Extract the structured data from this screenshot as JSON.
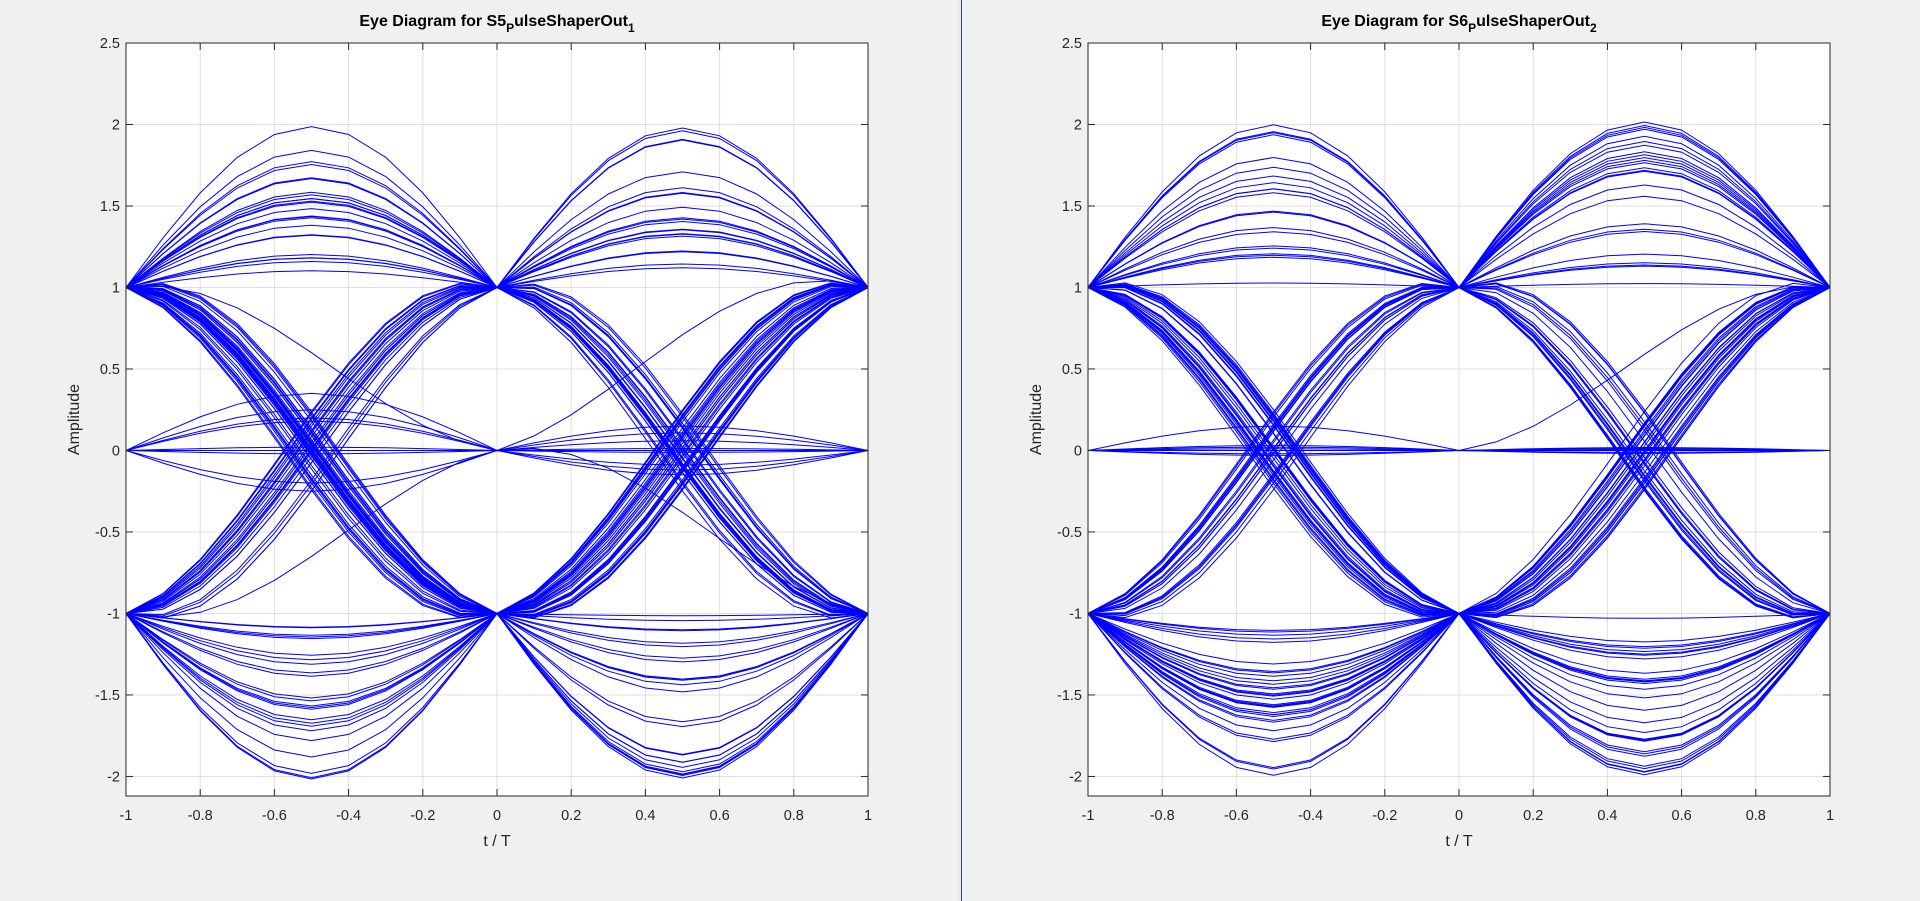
{
  "chart_data": [
    {
      "type": "line",
      "title": {
        "base": "Eye Diagram for S5",
        "sub": "P",
        "mid": "ulseShaperOut",
        "index": "1"
      },
      "xlabel": "t / T",
      "ylabel": "Amplitude",
      "xlim": [
        -1,
        1
      ],
      "ylim": [
        -2.12,
        2.5
      ],
      "xticks": [
        -1,
        -0.8,
        -0.6,
        -0.4,
        -0.2,
        0,
        0.2,
        0.4,
        0.6,
        0.8,
        1
      ],
      "xtick_labels": [
        "-1",
        "-0.8",
        "-0.6",
        "-0.4",
        "-0.2",
        "0",
        "0.2",
        "0.4",
        "0.6",
        "0.8",
        "1"
      ],
      "yticks": [
        -2,
        -1.5,
        -1,
        -0.5,
        0,
        0.5,
        1,
        1.5,
        2,
        2.5
      ],
      "ytick_labels": [
        "-2",
        "-1.5",
        "-1",
        "-0.5",
        "0",
        "0.5",
        "1",
        "1.5",
        "2",
        "2.5"
      ],
      "grid": true,
      "line_color": "#0000ff",
      "seed": 5,
      "samples_per_symbol": 10,
      "traces": 110,
      "bumps": [
        0.45,
        0.28,
        0.15,
        -0.15,
        0.32,
        0.2,
        0.1,
        -0.1
      ],
      "zero_traces": [
        {
          "start": 0,
          "end": 1,
          "bump": 0.35
        },
        {
          "start": 0,
          "end": -1,
          "bump": 0.2
        },
        {
          "start": 0,
          "end": 0,
          "bump": 0.25
        },
        {
          "start": 0,
          "end": 0,
          "bump": 0.18
        },
        {
          "start": 0,
          "end": 0,
          "bump": 0.02
        },
        {
          "start": 0,
          "end": 0,
          "bump": -0.02
        },
        {
          "start": 0,
          "end": 0,
          "bump": -0.25
        },
        {
          "start": 0,
          "end": 0,
          "bump": -0.2
        },
        {
          "start": -1,
          "end": 0,
          "bump": -0.15
        },
        {
          "start": 1,
          "end": 0,
          "bump": 0.1
        },
        {
          "start": 0,
          "end": 0,
          "bump": 0.0
        }
      ]
    },
    {
      "type": "line",
      "title": {
        "base": "Eye Diagram for S6",
        "sub": "P",
        "mid": "ulseShaperOut",
        "index": "2"
      },
      "xlabel": "t / T",
      "ylabel": "Amplitude",
      "xlim": [
        -1,
        1
      ],
      "ylim": [
        -2.12,
        2.5
      ],
      "xticks": [
        -1,
        -0.8,
        -0.6,
        -0.4,
        -0.2,
        0,
        0.2,
        0.4,
        0.6,
        0.8,
        1
      ],
      "xtick_labels": [
        "-1",
        "-0.8",
        "-0.6",
        "-0.4",
        "-0.2",
        "0",
        "0.2",
        "0.4",
        "0.6",
        "0.8",
        "1"
      ],
      "yticks": [
        -2,
        -1.5,
        -1,
        -0.5,
        0,
        0.5,
        1,
        1.5,
        2,
        2.5
      ],
      "ytick_labels": [
        "-2",
        "-1.5",
        "-1",
        "-0.5",
        "0",
        "0.5",
        "1",
        "1.5",
        "2",
        "2.5"
      ],
      "grid": true,
      "line_color": "#0000ff",
      "seed": 6,
      "samples_per_symbol": 10,
      "traces": 110,
      "bumps": [
        0.45,
        0.28,
        0.15,
        -0.15,
        0.32,
        0.2,
        0.1,
        -0.1
      ],
      "zero_traces": [
        {
          "start": 0,
          "end": 0,
          "bump": 0.02
        },
        {
          "start": 0,
          "end": 0,
          "bump": -0.02
        },
        {
          "start": 0,
          "end": 0,
          "bump": 0.01
        },
        {
          "start": 0,
          "end": 1,
          "bump": 0.15
        },
        {
          "start": 0,
          "end": 0,
          "bump": 0.03
        },
        {
          "start": 0,
          "end": 0,
          "bump": -0.03
        },
        {
          "start": 0,
          "end": 0,
          "bump": 0.0
        }
      ]
    }
  ]
}
